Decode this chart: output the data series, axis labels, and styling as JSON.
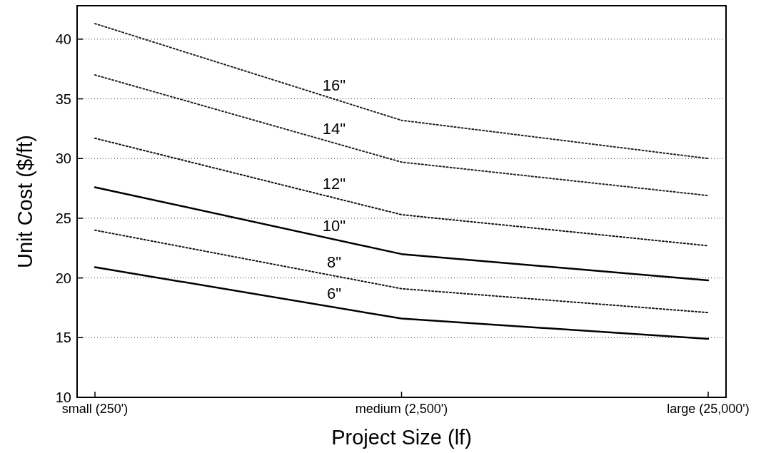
{
  "chart_data": {
    "type": "line",
    "xlabel": "Project Size (lf)",
    "ylabel": "Unit Cost ($/ft)",
    "categories": [
      "small (250')",
      "medium (2,500')",
      "large (25,000')"
    ],
    "ylim": [
      10,
      42.8
    ],
    "yticks": [
      10,
      15,
      20,
      25,
      30,
      35,
      40
    ],
    "grid": "y",
    "marker": "none",
    "series": [
      {
        "name": "16\"",
        "color": "#222222",
        "line_style": "dotted",
        "values": [
          41.3,
          33.2,
          30.0
        ]
      },
      {
        "name": "14\"",
        "color": "#222222",
        "line_style": "dotted",
        "values": [
          37.0,
          29.7,
          26.9
        ]
      },
      {
        "name": "12\"",
        "color": "#111111",
        "line_style": "dotted",
        "values": [
          31.7,
          25.3,
          22.7
        ]
      },
      {
        "name": "10\"",
        "color": "#000000",
        "line_style": "solid",
        "values": [
          27.6,
          22.0,
          19.8
        ]
      },
      {
        "name": "8\"",
        "color": "#111111",
        "line_style": "dotted",
        "values": [
          24.0,
          19.1,
          17.1
        ]
      },
      {
        "name": "6\"",
        "color": "#000000",
        "line_style": "solid",
        "values": [
          20.9,
          16.6,
          14.9
        ]
      }
    ]
  }
}
